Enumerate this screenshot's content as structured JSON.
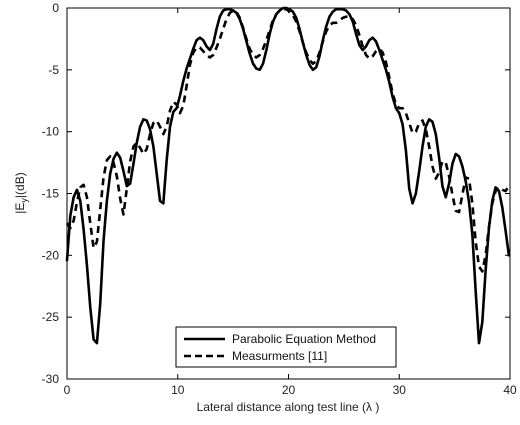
{
  "chart_data": {
    "type": "line",
    "xlabel": "Lateral distance along test line (λ    )",
    "ylabel": "|E",
    "ylabel_sub": "y",
    "ylabel_tail": "|(dB)",
    "xlim": [
      0,
      40
    ],
    "ylim": [
      -30,
      0
    ],
    "xticks": [
      0,
      10,
      20,
      30,
      40
    ],
    "yticks": [
      0,
      -5,
      -10,
      -15,
      -20,
      -25,
      -30
    ],
    "grid": false,
    "legend_position": "bottom-center",
    "series": [
      {
        "name": "Parabolic Equation Method",
        "style": "solid",
        "color": "#000000",
        "x": [
          0,
          0.3,
          0.6,
          0.9,
          1.2,
          1.5,
          1.8,
          2.1,
          2.4,
          2.7,
          3.0,
          3.3,
          3.6,
          3.9,
          4.2,
          4.5,
          4.8,
          5.1,
          5.4,
          5.7,
          6.0,
          6.3,
          6.6,
          6.9,
          7.2,
          7.5,
          7.8,
          8.1,
          8.4,
          8.7,
          9.0,
          9.3,
          9.6,
          9.9,
          10.2,
          10.5,
          10.8,
          11.1,
          11.4,
          11.7,
          12.0,
          12.3,
          12.6,
          12.9,
          13.2,
          13.5,
          13.8,
          14.1,
          14.4,
          14.7,
          15.0,
          15.3,
          15.6,
          15.9,
          16.2,
          16.5,
          16.8,
          17.1,
          17.4,
          17.7,
          18.0,
          18.3,
          18.6,
          18.9,
          19.2,
          19.5,
          19.8,
          20.1,
          20.4,
          20.7,
          21.0,
          21.3,
          21.6,
          21.9,
          22.2,
          22.5,
          22.8,
          23.1,
          23.4,
          23.7,
          24.0,
          24.3,
          24.6,
          24.9,
          25.2,
          25.5,
          25.8,
          26.1,
          26.4,
          26.7,
          27.0,
          27.3,
          27.6,
          27.9,
          28.2,
          28.5,
          28.8,
          29.1,
          29.4,
          29.7,
          30.0,
          30.3,
          30.6,
          30.9,
          31.2,
          31.5,
          31.8,
          32.1,
          32.4,
          32.7,
          33.0,
          33.3,
          33.6,
          33.9,
          34.2,
          34.5,
          34.8,
          35.1,
          35.4,
          35.7,
          36.0,
          36.3,
          36.6,
          36.9,
          37.2,
          37.5,
          37.8,
          38.1,
          38.4,
          38.7,
          39.0,
          39.3,
          39.6,
          39.9
        ],
        "y": [
          -20.4,
          -16.8,
          -15.3,
          -14.7,
          -15.6,
          -17.9,
          -20.8,
          -24.2,
          -26.8,
          -27.1,
          -23.9,
          -18.8,
          -15.6,
          -13.4,
          -12.2,
          -11.7,
          -12.1,
          -13.2,
          -14.4,
          -14.2,
          -12.6,
          -10.9,
          -9.6,
          -9.0,
          -9.1,
          -9.8,
          -11.2,
          -13.4,
          -15.6,
          -15.8,
          -12.3,
          -9.6,
          -8.4,
          -8.1,
          -7.1,
          -5.9,
          -4.9,
          -4.1,
          -3.3,
          -2.6,
          -2.4,
          -2.6,
          -3.1,
          -3.4,
          -2.9,
          -1.7,
          -0.7,
          -0.2,
          -0.1,
          -0.1,
          -0.2,
          -0.4,
          -0.9,
          -1.7,
          -2.7,
          -3.7,
          -4.5,
          -4.9,
          -5.0,
          -4.5,
          -3.4,
          -2.1,
          -1.1,
          -0.5,
          -0.2,
          -0.0,
          -0.0,
          -0.1,
          -0.3,
          -0.8,
          -1.7,
          -2.8,
          -3.8,
          -4.6,
          -5.0,
          -4.8,
          -3.9,
          -2.6,
          -1.5,
          -0.7,
          -0.3,
          -0.1,
          -0.1,
          -0.1,
          -0.2,
          -0.5,
          -1.1,
          -2.1,
          -3.0,
          -3.4,
          -3.1,
          -2.6,
          -2.4,
          -2.7,
          -3.4,
          -4.2,
          -5.0,
          -6.0,
          -7.2,
          -8.1,
          -8.5,
          -9.4,
          -11.5,
          -14.6,
          -15.8,
          -15.0,
          -13.2,
          -11.2,
          -9.6,
          -9.0,
          -9.2,
          -10.2,
          -12.1,
          -14.4,
          -15.3,
          -14.2,
          -12.6,
          -11.8,
          -12.0,
          -12.8,
          -14.0,
          -15.7,
          -18.3,
          -22.9,
          -27.1,
          -25.4,
          -21.2,
          -17.8,
          -15.6,
          -14.5,
          -14.8,
          -16.1,
          -18.0,
          -20.0
        ]
      },
      {
        "name": "Measurments [11]",
        "style": "dashed",
        "color": "#000000",
        "x": [
          0,
          0.3,
          0.6,
          0.9,
          1.2,
          1.5,
          1.8,
          2.1,
          2.4,
          2.7,
          3.0,
          3.3,
          3.6,
          3.9,
          4.2,
          4.5,
          4.8,
          5.1,
          5.4,
          5.7,
          6.0,
          6.3,
          6.6,
          6.9,
          7.2,
          7.5,
          7.8,
          8.1,
          8.4,
          8.7,
          9.0,
          9.3,
          9.6,
          9.9,
          10.2,
          10.5,
          10.8,
          11.1,
          11.4,
          11.7,
          12.0,
          12.3,
          12.6,
          12.9,
          13.2,
          13.5,
          13.8,
          14.1,
          14.4,
          14.7,
          15.0,
          15.3,
          15.6,
          15.9,
          16.2,
          16.5,
          16.8,
          17.1,
          17.4,
          17.7,
          18.0,
          18.3,
          18.6,
          18.9,
          19.2,
          19.5,
          19.8,
          20.1,
          20.4,
          20.7,
          21.0,
          21.3,
          21.6,
          21.9,
          22.2,
          22.5,
          22.8,
          23.1,
          23.4,
          23.7,
          24.0,
          24.3,
          24.6,
          24.9,
          25.2,
          25.5,
          25.8,
          26.1,
          26.4,
          26.7,
          27.0,
          27.3,
          27.6,
          27.9,
          28.2,
          28.5,
          28.8,
          29.1,
          29.4,
          29.7,
          30.0,
          30.3,
          30.6,
          30.9,
          31.2,
          31.5,
          31.8,
          32.1,
          32.4,
          32.7,
          33.0,
          33.3,
          33.6,
          33.9,
          34.2,
          34.5,
          34.8,
          35.1,
          35.4,
          35.7,
          36.0,
          36.3,
          36.6,
          36.9,
          37.2,
          37.5,
          37.8,
          38.1,
          38.4,
          38.7,
          39.0,
          39.3,
          39.6,
          39.9
        ],
        "y": [
          -17.4,
          -17.8,
          -17.2,
          -15.7,
          -14.5,
          -14.3,
          -15.3,
          -17.4,
          -19.4,
          -18.9,
          -16.3,
          -13.7,
          -12.3,
          -12.0,
          -12.5,
          -13.6,
          -15.4,
          -16.7,
          -14.6,
          -12.4,
          -11.2,
          -10.9,
          -11.3,
          -11.8,
          -11.4,
          -10.2,
          -9.3,
          -9.1,
          -9.6,
          -10.2,
          -9.6,
          -8.3,
          -7.6,
          -7.8,
          -8.5,
          -7.9,
          -6.3,
          -4.6,
          -3.6,
          -3.2,
          -3.2,
          -3.5,
          -3.8,
          -4.0,
          -3.8,
          -3.2,
          -2.5,
          -1.7,
          -0.9,
          -0.4,
          -0.2,
          -0.3,
          -0.8,
          -1.6,
          -2.5,
          -3.3,
          -3.8,
          -4.0,
          -3.8,
          -3.3,
          -2.6,
          -1.8,
          -1.0,
          -0.5,
          -0.2,
          -0.1,
          -0.1,
          -0.3,
          -0.6,
          -1.1,
          -1.9,
          -2.8,
          -3.6,
          -4.2,
          -4.5,
          -4.3,
          -3.6,
          -2.7,
          -1.9,
          -1.4,
          -1.2,
          -1.2,
          -1.0,
          -0.8,
          -0.7,
          -0.7,
          -0.9,
          -1.4,
          -2.2,
          -3.1,
          -3.8,
          -4.1,
          -3.9,
          -3.5,
          -3.3,
          -3.6,
          -4.4,
          -5.6,
          -6.9,
          -7.8,
          -8.1,
          -8.1,
          -8.5,
          -9.3,
          -10.1,
          -10.0,
          -9.3,
          -9.1,
          -9.8,
          -11.2,
          -12.8,
          -13.8,
          -13.3,
          -12.4,
          -12.5,
          -13.6,
          -15.1,
          -16.4,
          -16.5,
          -15.1,
          -13.7,
          -13.8,
          -15.8,
          -18.9,
          -20.9,
          -21.3,
          -20.0,
          -17.7,
          -15.8,
          -14.8,
          -14.5,
          -14.7,
          -14.8,
          -14.4
        ]
      }
    ]
  }
}
